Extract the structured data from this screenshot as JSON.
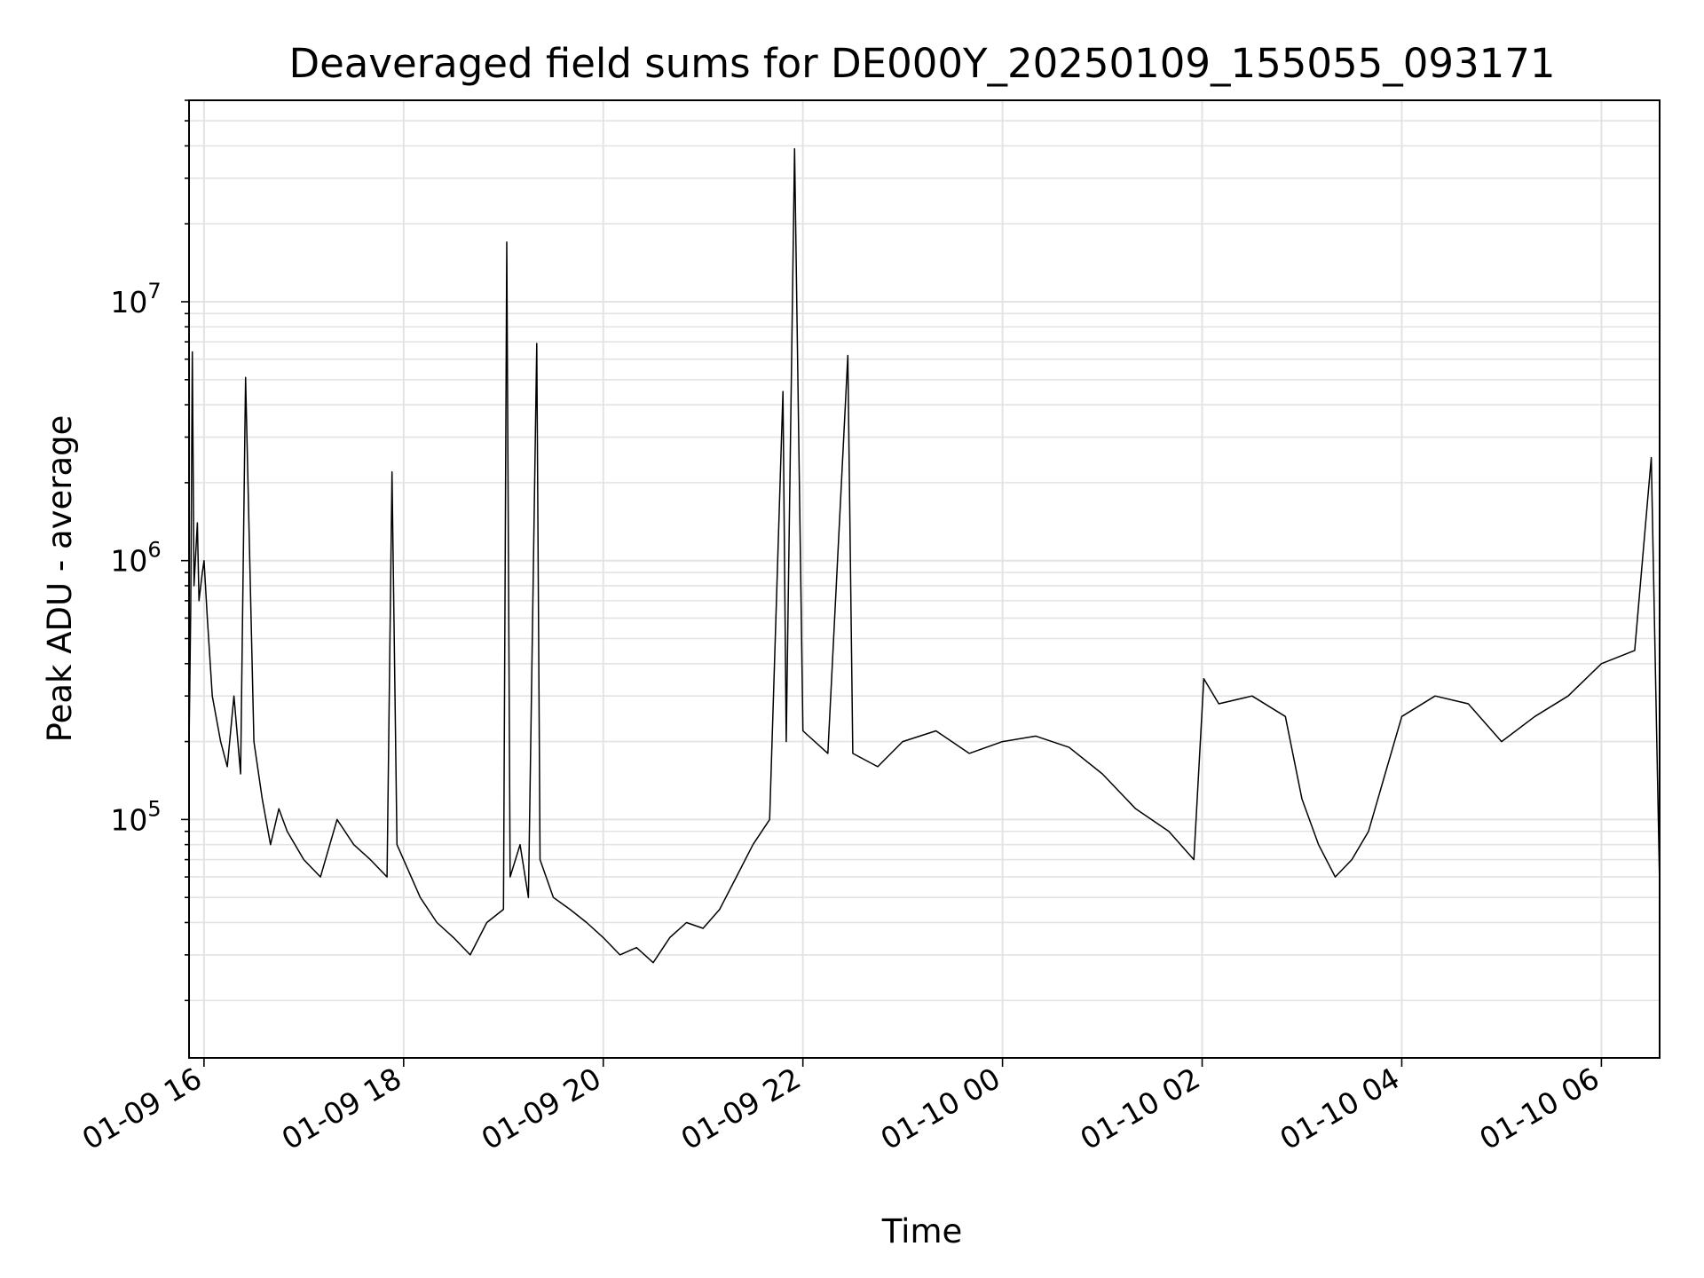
{
  "chart_data": {
    "type": "line",
    "title": "Deaveraged field sums for DE000Y_20250109_155055_093171",
    "xlabel": "Time",
    "ylabel": "Peak ADU - average",
    "yscale": "log",
    "grid": true,
    "x_ticks": [
      "01-09 16",
      "01-09 18",
      "01-09 20",
      "01-09 22",
      "01-10 00",
      "01-10 02",
      "01-10 04",
      "01-10 06"
    ],
    "y_ticks": [
      {
        "base": "10",
        "exp": "5",
        "value": 100000
      },
      {
        "base": "10",
        "exp": "6",
        "value": 1000000
      },
      {
        "base": "10",
        "exp": "7",
        "value": 10000000
      }
    ],
    "xlim": [
      "2025-01-09 15:51",
      "2025-01-10 06:35"
    ],
    "ylim": [
      12000,
      60000000
    ],
    "line_color": "#000000",
    "series": [
      {
        "x": [
          "2025-01-09 15:51",
          "2025-01-09 15:52",
          "2025-01-09 15:53",
          "2025-01-09 15:54",
          "2025-01-09 15:56",
          "2025-01-09 15:57",
          "2025-01-09 15:59",
          "2025-01-09 16:00",
          "2025-01-09 16:02",
          "2025-01-09 16:05",
          "2025-01-09 16:10",
          "2025-01-09 16:14",
          "2025-01-09 16:18",
          "2025-01-09 16:22",
          "2025-01-09 16:25",
          "2025-01-09 16:30",
          "2025-01-09 16:35",
          "2025-01-09 16:40",
          "2025-01-09 16:45",
          "2025-01-09 16:50",
          "2025-01-09 17:00",
          "2025-01-09 17:10",
          "2025-01-09 17:20",
          "2025-01-09 17:30",
          "2025-01-09 17:40",
          "2025-01-09 17:50",
          "2025-01-09 17:53",
          "2025-01-09 17:56",
          "2025-01-09 18:10",
          "2025-01-09 18:20",
          "2025-01-09 18:30",
          "2025-01-09 18:40",
          "2025-01-09 18:50",
          "2025-01-09 19:00",
          "2025-01-09 19:02",
          "2025-01-09 19:04",
          "2025-01-09 19:10",
          "2025-01-09 19:15",
          "2025-01-09 19:20",
          "2025-01-09 19:22",
          "2025-01-09 19:30",
          "2025-01-09 19:40",
          "2025-01-09 19:50",
          "2025-01-09 20:00",
          "2025-01-09 20:10",
          "2025-01-09 20:20",
          "2025-01-09 20:30",
          "2025-01-09 20:40",
          "2025-01-09 20:50",
          "2025-01-09 21:00",
          "2025-01-09 21:10",
          "2025-01-09 21:20",
          "2025-01-09 21:30",
          "2025-01-09 21:40",
          "2025-01-09 21:48",
          "2025-01-09 21:50",
          "2025-01-09 21:55",
          "2025-01-09 22:00",
          "2025-01-09 22:15",
          "2025-01-09 22:27",
          "2025-01-09 22:30",
          "2025-01-09 22:45",
          "2025-01-09 23:00",
          "2025-01-09 23:20",
          "2025-01-09 23:40",
          "2025-01-10 00:00",
          "2025-01-10 00:20",
          "2025-01-10 00:40",
          "2025-01-10 01:00",
          "2025-01-10 01:20",
          "2025-01-10 01:40",
          "2025-01-10 01:55",
          "2025-01-10 02:01",
          "2025-01-10 02:10",
          "2025-01-10 02:30",
          "2025-01-10 02:50",
          "2025-01-10 03:00",
          "2025-01-10 03:10",
          "2025-01-10 03:20",
          "2025-01-10 03:30",
          "2025-01-10 03:40",
          "2025-01-10 03:50",
          "2025-01-10 04:00",
          "2025-01-10 04:20",
          "2025-01-10 04:40",
          "2025-01-10 05:00",
          "2025-01-10 05:20",
          "2025-01-10 05:40",
          "2025-01-10 06:00",
          "2025-01-10 06:20",
          "2025-01-10 06:30",
          "2025-01-10 06:35"
        ],
        "values": [
          190000,
          650000,
          6400000,
          800000,
          1400000,
          700000,
          900000,
          1000000,
          600000,
          300000,
          200000,
          160000,
          300000,
          150000,
          5100000,
          200000,
          120000,
          80000,
          110000,
          90000,
          70000,
          60000,
          100000,
          80000,
          70000,
          60000,
          2200000,
          80000,
          50000,
          40000,
          35000,
          30000,
          40000,
          45000,
          17000000,
          60000,
          80000,
          50000,
          6900000,
          70000,
          50000,
          45000,
          40000,
          35000,
          30000,
          32000,
          28000,
          35000,
          40000,
          38000,
          45000,
          60000,
          80000,
          100000,
          4500000,
          200000,
          39000000,
          220000,
          180000,
          6200000,
          180000,
          160000,
          200000,
          220000,
          180000,
          200000,
          210000,
          190000,
          150000,
          110000,
          90000,
          70000,
          350000,
          280000,
          300000,
          250000,
          120000,
          80000,
          60000,
          70000,
          90000,
          150000,
          250000,
          300000,
          280000,
          200000,
          250000,
          300000,
          400000,
          450000,
          2500000,
          55000
        ]
      }
    ]
  }
}
